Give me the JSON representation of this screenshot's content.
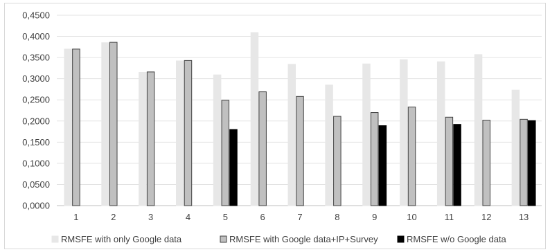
{
  "chart_data": {
    "type": "bar",
    "categories": [
      "1",
      "2",
      "3",
      "4",
      "5",
      "6",
      "7",
      "8",
      "9",
      "10",
      "11",
      "12",
      "13"
    ],
    "series": [
      {
        "name": "RMSFE with only Google data",
        "color": "#e7e7e7",
        "stroke": "#e7e7e7",
        "values": [
          0.37,
          0.385,
          0.315,
          0.342,
          0.309,
          0.409,
          0.334,
          0.285,
          0.335,
          0.345,
          0.34,
          0.357,
          0.273
        ]
      },
      {
        "name": "RMSFE with Google data+IP+Survey",
        "color": "#c0c0c0",
        "stroke": "#404040",
        "values": [
          0.37,
          0.386,
          0.316,
          0.343,
          0.249,
          0.269,
          0.258,
          0.211,
          0.22,
          0.233,
          0.209,
          0.202,
          0.204
        ]
      },
      {
        "name": "RMSFE w/o Google data",
        "color": "#000000",
        "stroke": "#000000",
        "values": [
          null,
          null,
          null,
          null,
          0.18,
          null,
          null,
          null,
          0.189,
          null,
          0.192,
          null,
          0.201
        ]
      }
    ],
    "yticks": [
      "0,0000",
      "0,0500",
      "0,1000",
      "0,1500",
      "0,2000",
      "0,2500",
      "0,3000",
      "0,3500",
      "0,4000",
      "0,4500"
    ],
    "ylim": [
      0,
      0.45
    ],
    "grid": true,
    "legend_position": "bottom"
  }
}
